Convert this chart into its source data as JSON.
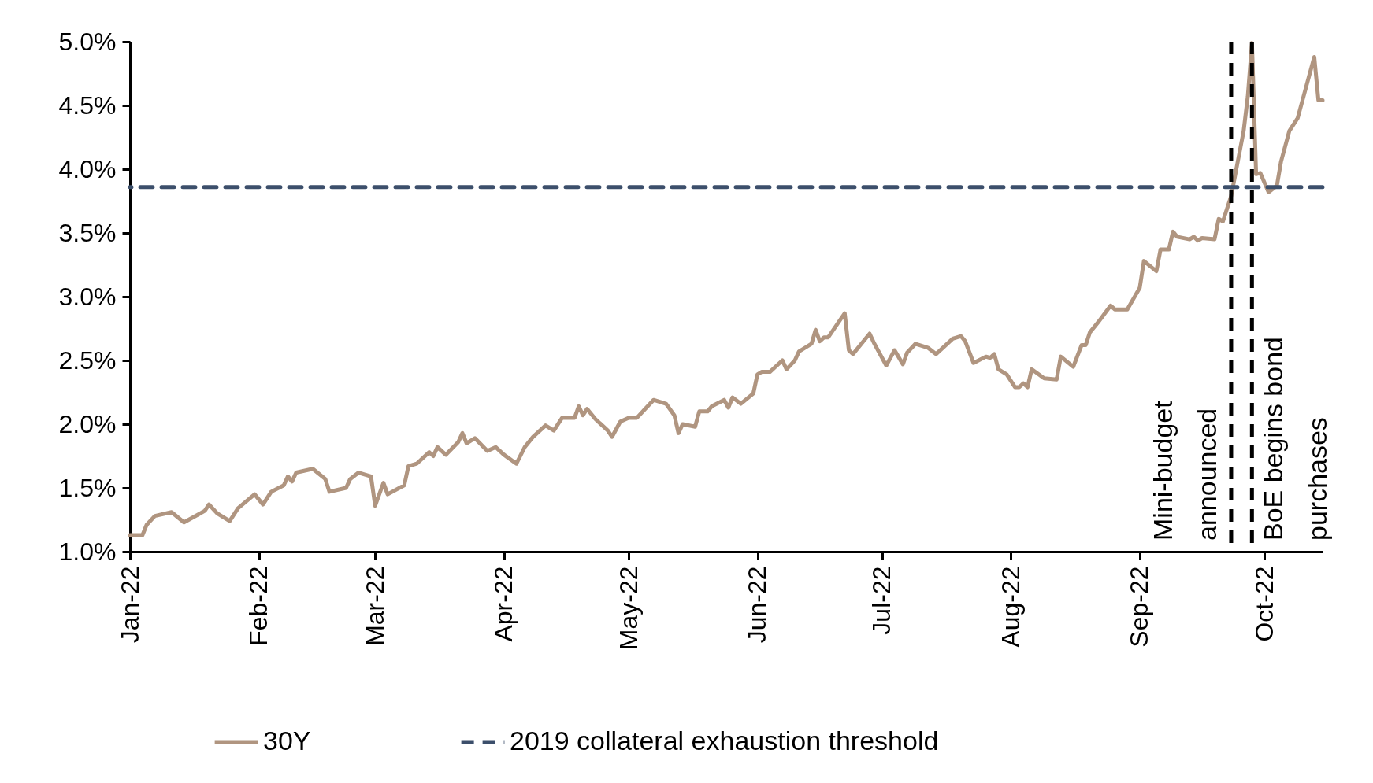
{
  "chart_data": {
    "type": "line",
    "xlim": [
      "2022-01-01",
      "2022-10-15"
    ],
    "ylim": [
      1,
      5
    ],
    "xticks": [
      {
        "value": "2022-01-01",
        "label": "Jan-22"
      },
      {
        "value": "2022-02-01",
        "label": "Feb-22"
      },
      {
        "value": "2022-03-01",
        "label": "Mar-22"
      },
      {
        "value": "2022-04-01",
        "label": "Apr-22"
      },
      {
        "value": "2022-05-01",
        "label": "May-22"
      },
      {
        "value": "2022-06-01",
        "label": "Jun-22"
      },
      {
        "value": "2022-07-01",
        "label": "Jul-22"
      },
      {
        "value": "2022-08-01",
        "label": "Aug-22"
      },
      {
        "value": "2022-09-01",
        "label": "Sep-22"
      },
      {
        "value": "2022-10-01",
        "label": "Oct-22"
      }
    ],
    "yticks": [
      {
        "value": 1,
        "label": "1.0%"
      },
      {
        "value": 1.5,
        "label": "1.5%"
      },
      {
        "value": 2,
        "label": "2.0%"
      },
      {
        "value": 2.5,
        "label": "2.5%"
      },
      {
        "value": 3,
        "label": "3.0%"
      },
      {
        "value": 3.5,
        "label": "3.5%"
      },
      {
        "value": 4,
        "label": "4.0%"
      },
      {
        "value": 4.5,
        "label": "4.5%"
      },
      {
        "value": 5,
        "label": "5.0%"
      }
    ],
    "grid": false,
    "legend": "bottom",
    "marker": "none",
    "x": [
      "2022-01-01",
      "2022-01-04",
      "2022-01-05",
      "2022-01-07",
      "2022-01-11",
      "2022-01-14",
      "2022-01-19",
      "2022-01-20",
      "2022-01-22",
      "2022-01-25",
      "2022-01-27",
      "2022-01-31",
      "2022-02-02",
      "2022-02-04",
      "2022-02-07",
      "2022-02-08",
      "2022-02-09",
      "2022-02-10",
      "2022-02-14",
      "2022-02-17",
      "2022-02-18",
      "2022-02-22",
      "2022-02-23",
      "2022-02-25",
      "2022-02-28",
      "2022-03-01",
      "2022-03-03",
      "2022-03-04",
      "2022-03-08",
      "2022-03-09",
      "2022-03-11",
      "2022-03-14",
      "2022-03-15",
      "2022-03-16",
      "2022-03-18",
      "2022-03-21",
      "2022-03-22",
      "2022-03-23",
      "2022-03-25",
      "2022-03-28",
      "2022-03-30",
      "2022-04-01",
      "2022-04-04",
      "2022-04-06",
      "2022-04-08",
      "2022-04-11",
      "2022-04-13",
      "2022-04-15",
      "2022-04-18",
      "2022-04-19",
      "2022-04-20",
      "2022-04-21",
      "2022-04-23",
      "2022-04-26",
      "2022-04-27",
      "2022-04-29",
      "2022-05-01",
      "2022-05-03",
      "2022-05-05",
      "2022-05-07",
      "2022-05-10",
      "2022-05-12",
      "2022-05-13",
      "2022-05-14",
      "2022-05-17",
      "2022-05-18",
      "2022-05-20",
      "2022-05-21",
      "2022-05-24",
      "2022-05-25",
      "2022-05-26",
      "2022-05-28",
      "2022-05-31",
      "2022-06-01",
      "2022-06-02",
      "2022-06-04",
      "2022-06-07",
      "2022-06-08",
      "2022-06-10",
      "2022-06-11",
      "2022-06-14",
      "2022-06-15",
      "2022-06-16",
      "2022-06-17",
      "2022-06-18",
      "2022-06-22",
      "2022-06-23",
      "2022-06-24",
      "2022-06-28",
      "2022-06-29",
      "2022-07-02",
      "2022-07-04",
      "2022-07-06",
      "2022-07-07",
      "2022-07-09",
      "2022-07-12",
      "2022-07-14",
      "2022-07-16",
      "2022-07-18",
      "2022-07-20",
      "2022-07-21",
      "2022-07-23",
      "2022-07-26",
      "2022-07-27",
      "2022-07-28",
      "2022-07-29",
      "2022-07-31",
      "2022-08-02",
      "2022-08-03",
      "2022-08-04",
      "2022-08-05",
      "2022-08-06",
      "2022-08-09",
      "2022-08-12",
      "2022-08-13",
      "2022-08-16",
      "2022-08-18",
      "2022-08-19",
      "2022-08-20",
      "2022-08-22",
      "2022-08-25",
      "2022-08-26",
      "2022-08-29",
      "2022-09-01",
      "2022-09-02",
      "2022-09-05",
      "2022-09-06",
      "2022-09-08",
      "2022-09-09",
      "2022-09-10",
      "2022-09-13",
      "2022-09-14",
      "2022-09-15",
      "2022-09-16",
      "2022-09-19",
      "2022-09-20",
      "2022-09-21",
      "2022-09-23",
      "2022-09-26",
      "2022-09-27",
      "2022-09-28",
      "2022-09-29",
      "2022-09-30",
      "2022-10-02",
      "2022-10-04",
      "2022-10-05",
      "2022-10-07",
      "2022-10-09",
      "2022-10-13",
      "2022-10-14",
      "2022-10-15"
    ],
    "series": [
      {
        "name": "30Y",
        "color": "#b09580",
        "line_style": "solid",
        "values": [
          1.13,
          1.13,
          1.21,
          1.28,
          1.31,
          1.23,
          1.32,
          1.37,
          1.3,
          1.24,
          1.34,
          1.45,
          1.37,
          1.47,
          1.52,
          1.59,
          1.55,
          1.62,
          1.65,
          1.57,
          1.47,
          1.5,
          1.57,
          1.62,
          1.59,
          1.36,
          1.54,
          1.45,
          1.52,
          1.67,
          1.69,
          1.78,
          1.75,
          1.82,
          1.76,
          1.86,
          1.93,
          1.85,
          1.89,
          1.79,
          1.82,
          1.76,
          1.69,
          1.82,
          1.9,
          1.99,
          1.95,
          2.05,
          2.05,
          2.14,
          2.07,
          2.12,
          2.04,
          1.95,
          1.9,
          2.02,
          2.05,
          2.05,
          2.12,
          2.19,
          2.16,
          2.07,
          1.93,
          2.0,
          1.98,
          2.1,
          2.1,
          2.14,
          2.19,
          2.13,
          2.21,
          2.16,
          2.24,
          2.39,
          2.41,
          2.41,
          2.5,
          2.43,
          2.5,
          2.57,
          2.63,
          2.74,
          2.65,
          2.68,
          2.68,
          2.87,
          2.58,
          2.55,
          2.71,
          2.64,
          2.46,
          2.58,
          2.47,
          2.56,
          2.63,
          2.6,
          2.55,
          2.61,
          2.67,
          2.69,
          2.65,
          2.48,
          2.53,
          2.52,
          2.55,
          2.43,
          2.39,
          2.29,
          2.29,
          2.32,
          2.29,
          2.43,
          2.36,
          2.35,
          2.53,
          2.45,
          2.62,
          2.62,
          2.72,
          2.8,
          2.93,
          2.9,
          2.9,
          3.07,
          3.28,
          3.2,
          3.37,
          3.37,
          3.51,
          3.47,
          3.45,
          3.47,
          3.44,
          3.46,
          3.45,
          3.61,
          3.59,
          3.79,
          4.3,
          4.57,
          4.99,
          3.96,
          3.97,
          3.82,
          3.87,
          4.06,
          4.3,
          4.4,
          4.88,
          4.54,
          4.54
        ]
      }
    ],
    "ref_lines": [
      {
        "axis": "y",
        "value": 3.86,
        "label": "2019 collateral exhaustion threshold",
        "color": "#3c4f6b",
        "line_style": "dashed"
      },
      {
        "axis": "x",
        "value": "2022-09-23",
        "label": "Mini-budget announced",
        "color": "#000000",
        "line_style": "dashed"
      },
      {
        "axis": "x",
        "value": "2022-09-28",
        "label": "BoE begins bond purchases",
        "color": "#000000",
        "line_style": "dashed"
      }
    ]
  }
}
